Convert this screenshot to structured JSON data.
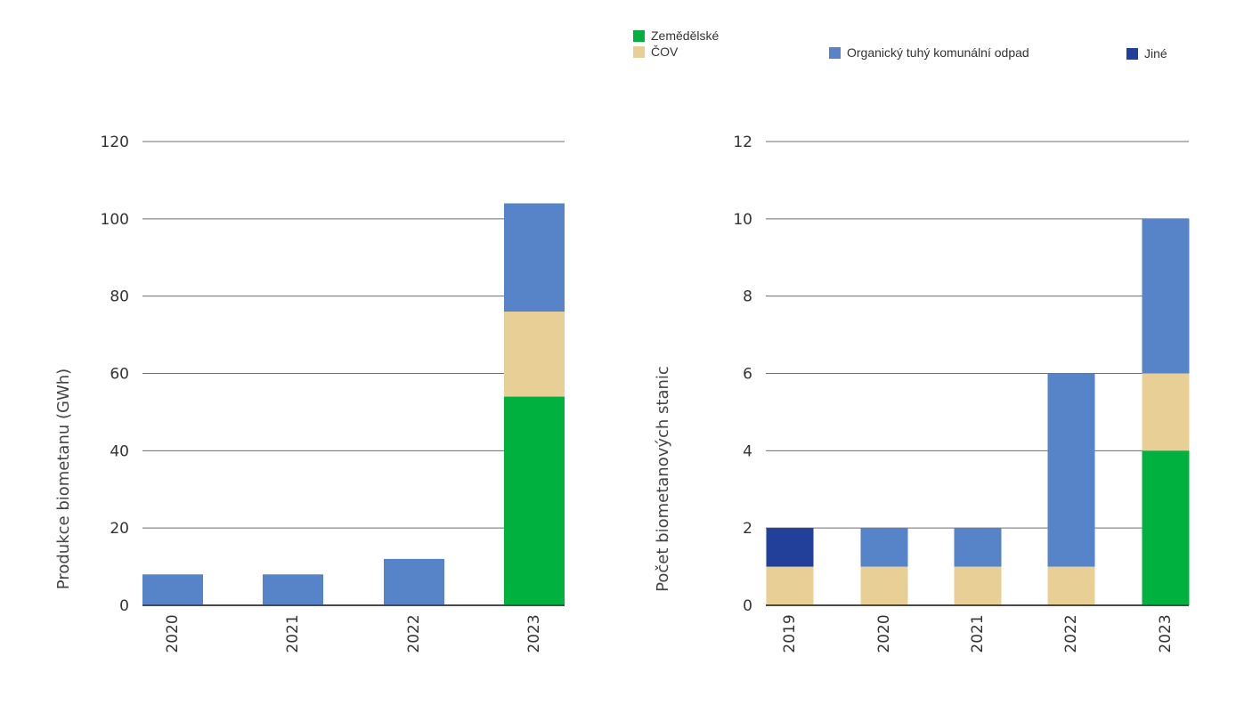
{
  "legend": [
    {
      "name": "Zemědělské",
      "color": "#00b140"
    },
    {
      "name": "ČOV",
      "color": "#e8cf95"
    },
    {
      "name": "Organický tuhý komunální odpad",
      "color": "#5783c8"
    },
    {
      "name": "Jiné",
      "color": "#22409a"
    }
  ],
  "chart_data": [
    {
      "type": "bar",
      "stacked": true,
      "ylabel": "Produkce biometanu (GWh)",
      "xlabel": "",
      "ylim": [
        0,
        120
      ],
      "yticks": [
        0,
        20,
        40,
        60,
        80,
        100,
        120
      ],
      "grid": true,
      "categories": [
        "2020",
        "2021",
        "2022",
        "2023"
      ],
      "series": [
        {
          "name": "Zemědělské",
          "color": "#00b140",
          "values": [
            0,
            0,
            0,
            54
          ]
        },
        {
          "name": "ČOV",
          "color": "#e8cf95",
          "values": [
            0,
            0,
            0,
            22
          ]
        },
        {
          "name": "Organický tuhý komunální odpad",
          "color": "#5783c8",
          "values": [
            8,
            8,
            12,
            28
          ]
        },
        {
          "name": "Jiné",
          "color": "#22409a",
          "values": [
            0,
            0,
            0,
            0
          ]
        }
      ]
    },
    {
      "type": "bar",
      "stacked": true,
      "ylabel": "Počet biometanových stanic",
      "xlabel": "",
      "ylim": [
        0,
        12
      ],
      "yticks": [
        0,
        2,
        4,
        6,
        8,
        10,
        12
      ],
      "grid": true,
      "categories": [
        "2019",
        "2020",
        "2021",
        "2022",
        "2023"
      ],
      "series": [
        {
          "name": "Zemědělské",
          "color": "#00b140",
          "values": [
            0,
            0,
            0,
            0,
            4
          ]
        },
        {
          "name": "ČOV",
          "color": "#e8cf95",
          "values": [
            1,
            1,
            1,
            1,
            2
          ]
        },
        {
          "name": "Organický tuhý komunální odpad",
          "color": "#5783c8",
          "values": [
            0,
            1,
            1,
            5,
            4
          ]
        },
        {
          "name": "Jiné",
          "color": "#22409a",
          "values": [
            1,
            0,
            0,
            0,
            0
          ]
        }
      ]
    }
  ]
}
